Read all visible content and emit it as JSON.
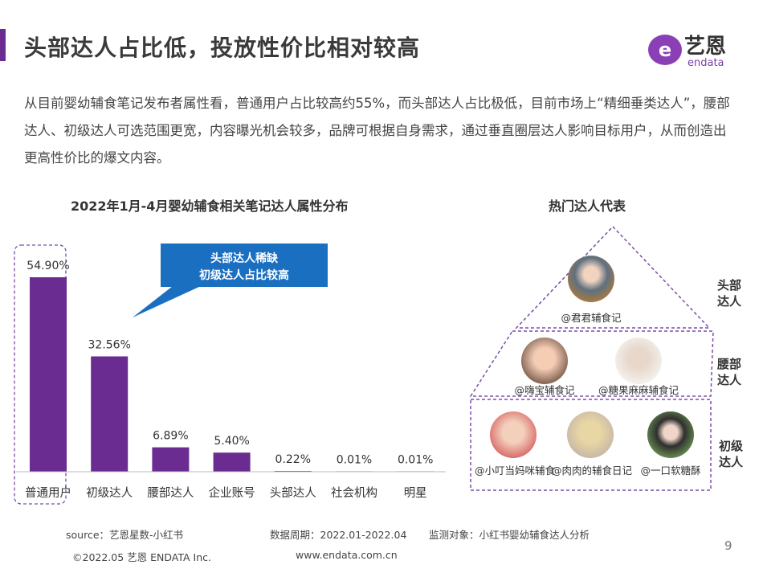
{
  "header": {
    "title": "头部达人占比低，投放性价比相对较高",
    "logo_text": "艺恩",
    "logo_sub": "endata"
  },
  "intro": "从目前婴幼辅食笔记发布者属性看，普通用户占比较高约55%，而头部达人占比极低，目前市场上“精细垂类达人”，腰部达人、初级达人可选范围更宽，内容曝光机会较多，品牌可根据自身需求，通过垂直圈层达人影响目标用户，从而创造出更高性价比的爆文内容。",
  "chart_data": {
    "type": "bar",
    "title": "2022年1月-4月婴幼辅食相关笔记达人属性分布",
    "categories": [
      "普通用户",
      "初级达人",
      "腰部达人",
      "企业账号",
      "头部达人",
      "社会机构",
      "明星"
    ],
    "values": [
      54.9,
      32.56,
      6.89,
      5.4,
      0.22,
      0.01,
      0.01
    ],
    "labels": [
      "54.90%",
      "32.56%",
      "6.89%",
      "5.40%",
      "0.22%",
      "0.01%",
      "0.01%"
    ],
    "ylim": [
      0,
      60
    ],
    "bar_color": "#6a2c91",
    "highlight": "普通用户",
    "callout": {
      "line1": "头部达人稀缺",
      "line2": "初级达人占比较高",
      "color": "#1a6fc0"
    }
  },
  "pyramid": {
    "title": "热门达人代表",
    "tiers": [
      {
        "label": "头部达人",
        "label_l1": "头部",
        "label_l2": "达人",
        "accounts": [
          "@君君辅食记"
        ]
      },
      {
        "label": "腰部达人",
        "label_l1": "腰部",
        "label_l2": "达人",
        "accounts": [
          "@嗨宝辅食记",
          "@糖果麻麻辅食记"
        ]
      },
      {
        "label": "初级达人",
        "label_l1": "初级",
        "label_l2": "达人",
        "accounts": [
          "@小叮当妈咪辅食",
          "@肉肉的辅食日记",
          "@一口软糖酥"
        ]
      }
    ],
    "line_color": "#7a4ea8"
  },
  "footer": {
    "source": "source：艺恩星数-小红书",
    "period": "数据周期：2022.01-2022.04",
    "target": "监测对象：小红书婴幼辅食达人分析",
    "copyright": "©2022.05 艺恩 ENDATA Inc.",
    "website": "www.endata.com.cn",
    "page": "9"
  }
}
